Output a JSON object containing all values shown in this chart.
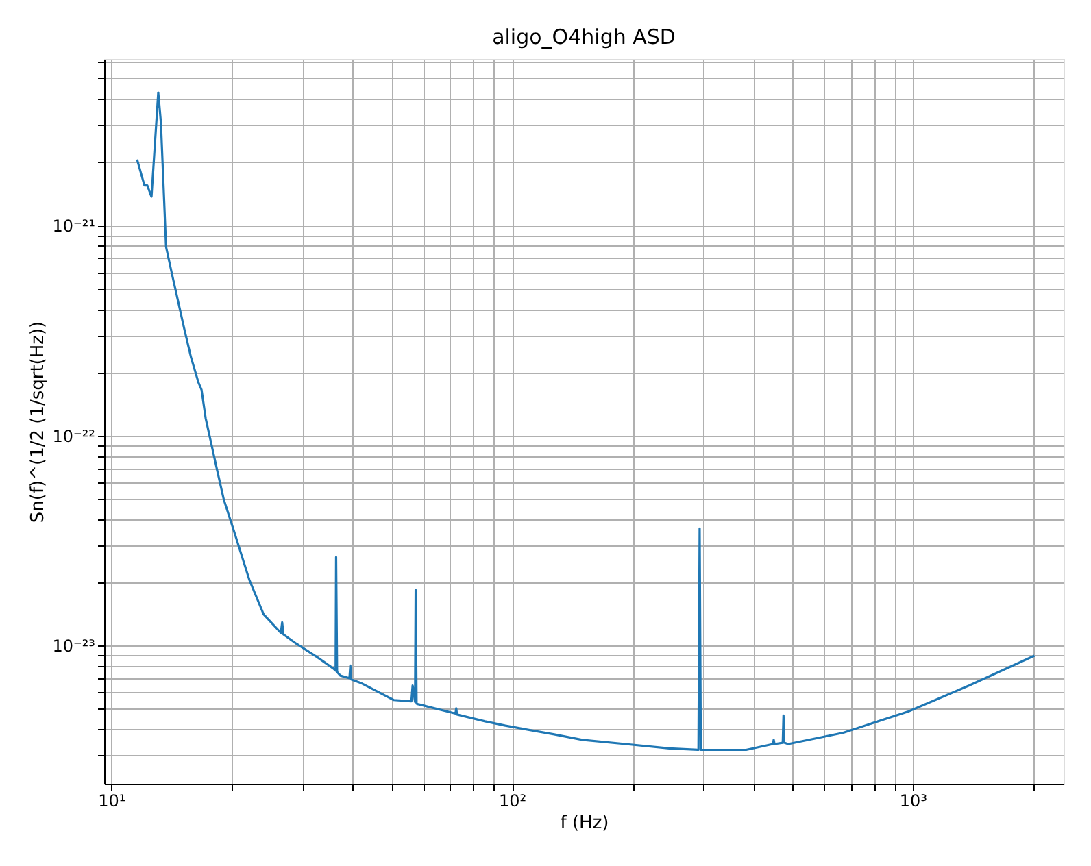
{
  "chart_data": {
    "type": "line",
    "title": "aligo_O4high ASD",
    "xlabel": "f (Hz)",
    "ylabel": "Sn(f)^(1/2 (1/sqrt(Hz))",
    "log": "xy",
    "grid": true,
    "marker": "none",
    "line_style": "solid",
    "xlim": [
      9.6,
      2380
    ],
    "ylim": [
      2.2e-24,
      6.2e-21
    ],
    "xticks": [
      {
        "value": 10,
        "label": "10¹"
      },
      {
        "value": 20,
        "label": null
      },
      {
        "value": 30,
        "label": null
      },
      {
        "value": 40,
        "label": null
      },
      {
        "value": 50,
        "label": null
      },
      {
        "value": 60,
        "label": null
      },
      {
        "value": 70,
        "label": null
      },
      {
        "value": 80,
        "label": null
      },
      {
        "value": 90,
        "label": null
      },
      {
        "value": 100,
        "label": "10²"
      },
      {
        "value": 200,
        "label": null
      },
      {
        "value": 300,
        "label": null
      },
      {
        "value": 400,
        "label": null
      },
      {
        "value": 500,
        "label": null
      },
      {
        "value": 600,
        "label": null
      },
      {
        "value": 700,
        "label": null
      },
      {
        "value": 800,
        "label": null
      },
      {
        "value": 900,
        "label": null
      },
      {
        "value": 1000,
        "label": "10³"
      },
      {
        "value": 2000,
        "label": null
      }
    ],
    "yticks": [
      {
        "value": 3e-24,
        "label": null
      },
      {
        "value": 4e-24,
        "label": null
      },
      {
        "value": 5e-24,
        "label": null
      },
      {
        "value": 6e-24,
        "label": null
      },
      {
        "value": 7e-24,
        "label": null
      },
      {
        "value": 8e-24,
        "label": null
      },
      {
        "value": 9e-24,
        "label": null
      },
      {
        "value": 1e-23,
        "label": "10⁻²³"
      },
      {
        "value": 2e-23,
        "label": null
      },
      {
        "value": 3e-23,
        "label": null
      },
      {
        "value": 4e-23,
        "label": null
      },
      {
        "value": 5e-23,
        "label": null
      },
      {
        "value": 6e-23,
        "label": null
      },
      {
        "value": 7e-23,
        "label": null
      },
      {
        "value": 8e-23,
        "label": null
      },
      {
        "value": 9e-23,
        "label": null
      },
      {
        "value": 1e-22,
        "label": "10⁻²²"
      },
      {
        "value": 2e-22,
        "label": null
      },
      {
        "value": 3e-22,
        "label": null
      },
      {
        "value": 4e-22,
        "label": null
      },
      {
        "value": 5e-22,
        "label": null
      },
      {
        "value": 6e-22,
        "label": null
      },
      {
        "value": 7e-22,
        "label": null
      },
      {
        "value": 8e-22,
        "label": null
      },
      {
        "value": 9e-22,
        "label": null
      },
      {
        "value": 1e-21,
        "label": "10⁻²¹"
      },
      {
        "value": 2e-21,
        "label": null
      },
      {
        "value": 3e-21,
        "label": null
      },
      {
        "value": 4e-21,
        "label": null
      },
      {
        "value": 5e-21,
        "label": null
      },
      {
        "value": 6e-21,
        "label": null
      }
    ],
    "series": [
      {
        "color": "#1f77b4",
        "x": [
          11.6,
          12.1,
          12.3,
          12.6,
          13.1,
          13.3,
          13.7,
          14.2,
          15.2,
          15.8,
          16.5,
          16.8,
          17.2,
          18.4,
          19.1,
          20.3,
          22.1,
          24.0,
          26.5,
          26.7,
          26.9,
          29.0,
          32.6,
          35.8,
          36.3,
          36.4,
          36.6,
          37.3,
          39.3,
          39.5,
          39.7,
          41.9,
          50.7,
          56.1,
          56.5,
          57.3,
          57.5,
          57.8,
          58.4,
          72.3,
          72.6,
          72.9,
          85.7,
          96.3,
          126.8,
          149.8,
          192,
          247,
          292,
          294,
          296,
          384,
          448,
          450,
          452,
          474,
          476,
          478,
          489,
          671,
          975,
          1384,
          2013
        ],
        "values": [
          2.06e-21,
          1.55e-21,
          1.55e-21,
          1.37e-21,
          4.29e-21,
          3.09e-21,
          7.91e-22,
          5.78e-22,
          3.24e-22,
          2.37e-22,
          1.79e-22,
          1.65e-22,
          1.21e-22,
          6.76e-23,
          4.94e-23,
          3.45e-23,
          2.06e-23,
          1.41e-23,
          1.15e-23,
          1.29e-23,
          1.13e-23,
          1.02e-23,
          8.83e-24,
          7.79e-24,
          7.6e-24,
          2.64e-23,
          7.5e-24,
          7.2e-24,
          7e-24,
          8.04e-24,
          6.9e-24,
          6.65e-24,
          5.51e-24,
          5.43e-24,
          6.46e-24,
          5.4e-24,
          1.84e-23,
          5.3e-24,
          5.26e-24,
          4.75e-24,
          5.03e-24,
          4.7e-24,
          4.36e-24,
          4.16e-24,
          3.79e-24,
          3.56e-24,
          3.4e-24,
          3.24e-24,
          3.19e-24,
          3.61e-23,
          3.19e-24,
          3.19e-24,
          3.4e-24,
          3.56e-24,
          3.4e-24,
          3.45e-24,
          4.65e-24,
          3.45e-24,
          3.4e-24,
          3.85e-24,
          4.86e-24,
          6.46e-24,
          8.96e-24
        ]
      }
    ]
  }
}
